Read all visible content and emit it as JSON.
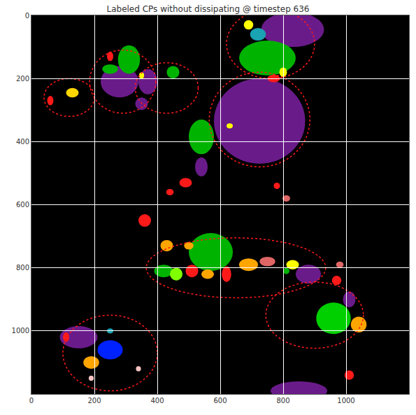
{
  "chart_data": {
    "type": "image",
    "title": "Labeled CPs without dissipating @ timestep 636",
    "xlim": [
      0,
      1200
    ],
    "ylim": [
      1200,
      0
    ],
    "xticks": [
      0,
      200,
      400,
      600,
      800,
      1000
    ],
    "yticks": [
      0,
      200,
      400,
      600,
      800,
      1000
    ],
    "grid": true,
    "outlines": {
      "color": "#ff1a1a",
      "regions": [
        {
          "x": 725,
          "y": 330,
          "rx": 160,
          "ry": 150
        },
        {
          "x": 290,
          "y": 210,
          "rx": 105,
          "ry": 100
        },
        {
          "x": 650,
          "y": 800,
          "rx": 285,
          "ry": 95
        },
        {
          "x": 250,
          "y": 1070,
          "rx": 150,
          "ry": 120
        },
        {
          "x": 900,
          "y": 950,
          "rx": 155,
          "ry": 105
        },
        {
          "x": 120,
          "y": 260,
          "rx": 80,
          "ry": 60
        },
        {
          "x": 430,
          "y": 230,
          "rx": 100,
          "ry": 80
        },
        {
          "x": 760,
          "y": 90,
          "rx": 140,
          "ry": 110
        }
      ]
    },
    "regions": [
      {
        "x": 725,
        "y": 335,
        "rx": 145,
        "ry": 135,
        "color": "#6a1b8a"
      },
      {
        "x": 830,
        "y": 45,
        "rx": 100,
        "ry": 55,
        "color": "#6a1b8a"
      },
      {
        "x": 750,
        "y": 135,
        "rx": 90,
        "ry": 55,
        "color": "#00b300"
      },
      {
        "x": 720,
        "y": 60,
        "rx": 25,
        "ry": 20,
        "color": "#1aa3b3"
      },
      {
        "x": 690,
        "y": 30,
        "rx": 15,
        "ry": 15,
        "color": "#ffff00"
      },
      {
        "x": 800,
        "y": 180,
        "rx": 12,
        "ry": 15,
        "color": "#ffff00"
      },
      {
        "x": 770,
        "y": 200,
        "rx": 20,
        "ry": 12,
        "color": "#ff1a1a"
      },
      {
        "x": 280,
        "y": 210,
        "rx": 60,
        "ry": 50,
        "color": "#6a1b8a"
      },
      {
        "x": 310,
        "y": 140,
        "rx": 35,
        "ry": 45,
        "color": "#00b300"
      },
      {
        "x": 250,
        "y": 170,
        "rx": 25,
        "ry": 15,
        "color": "#00b300"
      },
      {
        "x": 370,
        "y": 210,
        "rx": 30,
        "ry": 40,
        "color": "#6a1b8a"
      },
      {
        "x": 350,
        "y": 280,
        "rx": 20,
        "ry": 20,
        "color": "#6a1b8a"
      },
      {
        "x": 250,
        "y": 130,
        "rx": 10,
        "ry": 15,
        "color": "#ff1a1a"
      },
      {
        "x": 350,
        "y": 190,
        "rx": 8,
        "ry": 10,
        "color": "#ffff00"
      },
      {
        "x": 450,
        "y": 180,
        "rx": 20,
        "ry": 20,
        "color": "#00b300"
      },
      {
        "x": 130,
        "y": 245,
        "rx": 20,
        "ry": 15,
        "color": "#ffd700"
      },
      {
        "x": 60,
        "y": 270,
        "rx": 10,
        "ry": 15,
        "color": "#ff1a1a"
      },
      {
        "x": 540,
        "y": 385,
        "rx": 40,
        "ry": 55,
        "color": "#00b300"
      },
      {
        "x": 540,
        "y": 480,
        "rx": 20,
        "ry": 30,
        "color": "#6a1b8a"
      },
      {
        "x": 490,
        "y": 530,
        "rx": 20,
        "ry": 15,
        "color": "#ff1a1a"
      },
      {
        "x": 630,
        "y": 350,
        "rx": 10,
        "ry": 8,
        "color": "#ffff00"
      },
      {
        "x": 440,
        "y": 560,
        "rx": 12,
        "ry": 10,
        "color": "#ff1a1a"
      },
      {
        "x": 360,
        "y": 650,
        "rx": 20,
        "ry": 20,
        "color": "#ff1a1a"
      },
      {
        "x": 810,
        "y": 580,
        "rx": 12,
        "ry": 10,
        "color": "#e06666"
      },
      {
        "x": 780,
        "y": 540,
        "rx": 10,
        "ry": 10,
        "color": "#ff1a1a"
      },
      {
        "x": 430,
        "y": 730,
        "rx": 20,
        "ry": 18,
        "color": "#ffa500"
      },
      {
        "x": 570,
        "y": 750,
        "rx": 70,
        "ry": 60,
        "color": "#00b300"
      },
      {
        "x": 500,
        "y": 730,
        "rx": 15,
        "ry": 12,
        "color": "#ffa500"
      },
      {
        "x": 420,
        "y": 810,
        "rx": 30,
        "ry": 20,
        "color": "#00b300"
      },
      {
        "x": 460,
        "y": 820,
        "rx": 20,
        "ry": 20,
        "color": "#7fff00"
      },
      {
        "x": 510,
        "y": 810,
        "rx": 20,
        "ry": 20,
        "color": "#ff1a1a"
      },
      {
        "x": 620,
        "y": 820,
        "rx": 15,
        "ry": 25,
        "color": "#ff1a1a"
      },
      {
        "x": 560,
        "y": 820,
        "rx": 20,
        "ry": 15,
        "color": "#ffa500"
      },
      {
        "x": 690,
        "y": 790,
        "rx": 30,
        "ry": 20,
        "color": "#ffa500"
      },
      {
        "x": 750,
        "y": 780,
        "rx": 25,
        "ry": 15,
        "color": "#e06666"
      },
      {
        "x": 830,
        "y": 790,
        "rx": 20,
        "ry": 15,
        "color": "#ffff00"
      },
      {
        "x": 810,
        "y": 810,
        "rx": 10,
        "ry": 10,
        "color": "#00b300"
      },
      {
        "x": 880,
        "y": 820,
        "rx": 40,
        "ry": 30,
        "color": "#6a1b8a"
      },
      {
        "x": 980,
        "y": 790,
        "rx": 12,
        "ry": 10,
        "color": "#e06666"
      },
      {
        "x": 970,
        "y": 840,
        "rx": 15,
        "ry": 15,
        "color": "#ff1a1a"
      },
      {
        "x": 1010,
        "y": 900,
        "rx": 20,
        "ry": 25,
        "color": "#6a1b8a"
      },
      {
        "x": 960,
        "y": 960,
        "rx": 55,
        "ry": 50,
        "color": "#00d000"
      },
      {
        "x": 1040,
        "y": 980,
        "rx": 25,
        "ry": 25,
        "color": "#ffa500"
      },
      {
        "x": 150,
        "y": 1020,
        "rx": 60,
        "ry": 35,
        "color": "#6a1b8a"
      },
      {
        "x": 110,
        "y": 1020,
        "rx": 10,
        "ry": 15,
        "color": "#ff1a1a"
      },
      {
        "x": 250,
        "y": 1000,
        "rx": 10,
        "ry": 8,
        "color": "#1aa3b3"
      },
      {
        "x": 250,
        "y": 1060,
        "rx": 40,
        "ry": 30,
        "color": "#0022ff"
      },
      {
        "x": 190,
        "y": 1100,
        "rx": 25,
        "ry": 20,
        "color": "#ffa500"
      },
      {
        "x": 190,
        "y": 1150,
        "rx": 8,
        "ry": 8,
        "color": "#f4c2c2"
      },
      {
        "x": 340,
        "y": 1120,
        "rx": 8,
        "ry": 8,
        "color": "#f4c2c2"
      },
      {
        "x": 1010,
        "y": 1140,
        "rx": 15,
        "ry": 15,
        "color": "#ff1a1a"
      },
      {
        "x": 850,
        "y": 1190,
        "rx": 90,
        "ry": 30,
        "color": "#6a1b8a"
      }
    ]
  }
}
